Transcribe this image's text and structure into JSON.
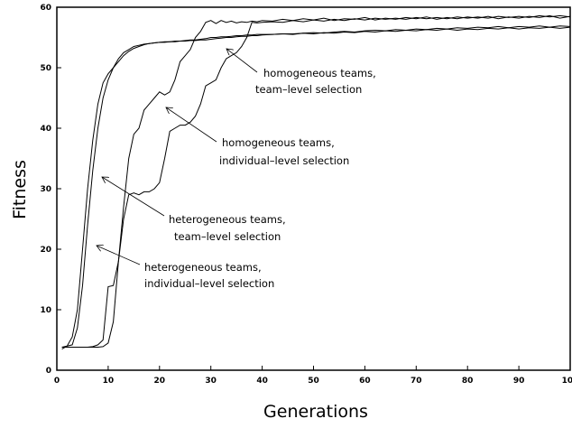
{
  "chart_data": {
    "type": "line",
    "x_label": "Generations",
    "y_label": "Fitness",
    "x": [
      1,
      2,
      3,
      4,
      5,
      6,
      7,
      8,
      9,
      10,
      11,
      12,
      13,
      14,
      15,
      16,
      17,
      18,
      19,
      20,
      21,
      22,
      23,
      24,
      25,
      26,
      27,
      28,
      29,
      30,
      31,
      32,
      33,
      34,
      35,
      36,
      37,
      38,
      39,
      40,
      42,
      44,
      46,
      48,
      50,
      52,
      54,
      56,
      58,
      60,
      62,
      64,
      66,
      68,
      70,
      72,
      74,
      76,
      78,
      80,
      82,
      84,
      86,
      88,
      90,
      92,
      94,
      96,
      98,
      100
    ],
    "series": [
      {
        "color": "#000000",
        "values": [
          3.5,
          4,
          5.5,
          10,
          20,
          30,
          38,
          44,
          47.5,
          49,
          50,
          51,
          52,
          52.7,
          53.2,
          53.5,
          53.8,
          54,
          54.1,
          54.2,
          54.3,
          54.3,
          54.4,
          54.4,
          54.5,
          54.6,
          54.6,
          54.7,
          54.8,
          55,
          55,
          55.1,
          55.1,
          55.2,
          55.3,
          55.3,
          55.4,
          55.4,
          55.5,
          55.5,
          55.5,
          55.6,
          55.6,
          55.7,
          55.6,
          55.8,
          55.7,
          55.9,
          55.8,
          56,
          55.9,
          56.1,
          56,
          56.2,
          56.1,
          56.3,
          56.2,
          56.4,
          56.2,
          56.4,
          56.3,
          56.5,
          56.4,
          56.6,
          56.4,
          56.6,
          56.5,
          56.7,
          56.5,
          56.7
        ]
      },
      {
        "color": "#000000",
        "values": [
          3.8,
          4,
          4.2,
          7,
          14,
          24,
          33,
          40,
          45,
          48,
          50,
          51.5,
          52.5,
          53,
          53.5,
          53.7,
          53.9,
          54,
          54.1,
          54.2,
          54.2,
          54.3,
          54.3,
          54.4,
          54.4,
          54.5,
          54.5,
          54.6,
          54.6,
          54.7,
          54.8,
          54.9,
          55,
          55,
          55.1,
          55.2,
          55.2,
          55.3,
          55.3,
          55.4,
          55.5,
          55.6,
          55.5,
          55.7,
          55.8,
          55.7,
          55.9,
          56,
          55.9,
          56.1,
          56.2,
          56.1,
          56.3,
          56.2,
          56.4,
          56.3,
          56.5,
          56.4,
          56.6,
          56.5,
          56.7,
          56.6,
          56.8,
          56.6,
          56.8,
          56.7,
          56.9,
          56.7,
          56.9,
          56.8
        ]
      },
      {
        "color": "#000000",
        "values": [
          3.8,
          3.8,
          3.8,
          3.8,
          3.8,
          3.8,
          3.9,
          4.2,
          5,
          13.8,
          14,
          18,
          27,
          35,
          39,
          40,
          43,
          44,
          45,
          46,
          45.5,
          46,
          48,
          51,
          52,
          53,
          55,
          56,
          57.5,
          57.8,
          57.3,
          57.8,
          57.5,
          57.7,
          57.4,
          57.6,
          57.5,
          57.7,
          57.6,
          57.8,
          57.7,
          58,
          57.8,
          58.1,
          57.9,
          58.2,
          57.8,
          58.1,
          58,
          58.3,
          57.9,
          58.2,
          58,
          58.3,
          58.1,
          58.4,
          58,
          58.3,
          58.1,
          58.4,
          58.2,
          58.5,
          58.1,
          58.4,
          58.2,
          58.5,
          58.3,
          58.6,
          58.2,
          58.5
        ]
      },
      {
        "color": "#000000",
        "values": [
          3.8,
          3.8,
          3.8,
          3.8,
          3.8,
          3.8,
          3.8,
          3.8,
          3.9,
          4.5,
          8,
          18,
          25,
          29,
          29.3,
          29,
          29.5,
          29.5,
          30,
          31,
          35,
          39.5,
          40,
          40.5,
          40.5,
          41,
          42,
          44,
          47,
          47.5,
          48,
          50,
          51.5,
          52,
          52.5,
          53.5,
          55,
          57.5,
          57.4,
          57.5,
          57.6,
          57.5,
          57.8,
          57.6,
          57.9,
          57.7,
          58,
          57.8,
          58.1,
          57.9,
          58.2,
          58,
          58.2,
          58,
          58.3,
          58.1,
          58.3,
          58.1,
          58.4,
          58.2,
          58.4,
          58.2,
          58.5,
          58.3,
          58.5,
          58.3,
          58.6,
          58.4,
          58.6,
          58.4
        ]
      }
    ],
    "annotations": [
      [
        "homogeneous teams,",
        "team–level selection"
      ],
      [
        "homogeneous teams,",
        "individual–level selection"
      ],
      [
        "heterogeneous teams,",
        "team–level selection"
      ],
      [
        "heterogeneous teams,",
        "individual–level selection"
      ]
    ],
    "xlim": [
      0,
      100
    ],
    "xticks": [
      0,
      10,
      20,
      30,
      40,
      50,
      60,
      70,
      80,
      90,
      100
    ],
    "ylim": [
      0,
      60
    ],
    "yticks": [
      0,
      10,
      20,
      30,
      40,
      50,
      60
    ]
  }
}
